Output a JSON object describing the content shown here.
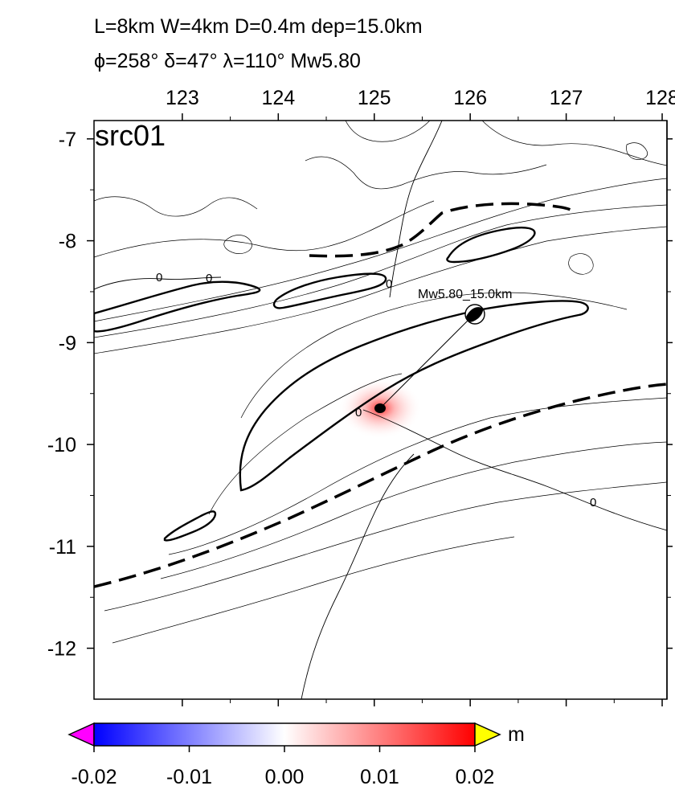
{
  "title": {
    "line1": "L=8km W=4km D=0.4m dep=15.0km",
    "line2": "ϕ=258° δ=47° λ=110° Mw5.80"
  },
  "panel_label": "src01",
  "longitude_axis": {
    "ticks": [
      123,
      124,
      125,
      126,
      127,
      128
    ],
    "labels": [
      "123",
      "124",
      "125",
      "126",
      "127",
      "128"
    ],
    "range": [
      122.08,
      128.05
    ],
    "position": "top"
  },
  "latitude_axis": {
    "ticks": [
      -7,
      -8,
      -9,
      -10,
      -11,
      -12
    ],
    "labels": [
      "-7",
      "-8",
      "-9",
      "-10",
      "-11",
      "-12"
    ],
    "range": [
      -12.5,
      -6.82
    ],
    "position": "left"
  },
  "contours": {
    "zero_label": "0"
  },
  "source": {
    "label": "Mw5.80_15.0km",
    "epicenter_lon": 125.1,
    "epicenter_lat": -9.5,
    "beachball_lon": 126.08,
    "beachball_lat": -8.5,
    "peak_uplift": 0.01
  },
  "colorbar": {
    "min": -0.02,
    "max": 0.02,
    "ticks": [
      -0.02,
      -0.01,
      0.0,
      0.01,
      0.02
    ],
    "labels": [
      "-0.02",
      "-0.01",
      "0.00",
      "0.01",
      "0.02"
    ],
    "unit": "m",
    "colors": {
      "low": "#0000ff",
      "mid": "#ffffff",
      "high": "#ff0000",
      "below": "#ff00ff",
      "above": "#ffff00"
    }
  }
}
